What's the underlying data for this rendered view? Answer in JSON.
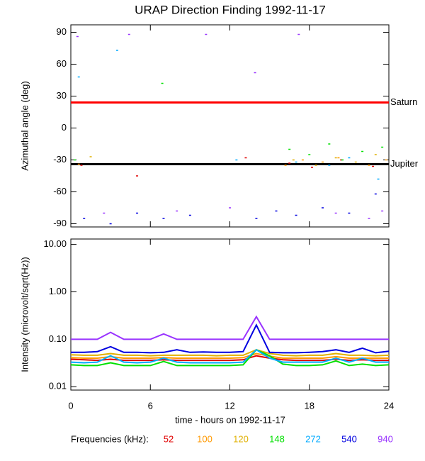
{
  "title": "URAP Direction Finding  1992-11-17",
  "xlabel": "time - hours on 1992-11-17",
  "legend_title": "Frequencies (kHz):",
  "chart_data": [
    {
      "type": "scatter",
      "ylabel": "Azimuthal angle (deg)",
      "xlim": [
        0,
        24
      ],
      "xticks": [
        0,
        6,
        12,
        18,
        24
      ],
      "ylim": [
        -93,
        97
      ],
      "yticks": [
        90,
        60,
        30,
        0,
        -30,
        -60,
        -90
      ],
      "reference_lines": [
        {
          "label": "Saturn",
          "value": 24,
          "color": "#ff0000"
        },
        {
          "label": "Jupiter",
          "value": -34,
          "color": "#000000"
        }
      ],
      "series": [
        {
          "color": "#e00000",
          "x": [
            0.8,
            5,
            13.2,
            16.5,
            18.2,
            20.4,
            22.8
          ],
          "values": [
            -35,
            -45,
            -28,
            -33,
            -37,
            -30,
            -36
          ]
        },
        {
          "color": "#ff9900",
          "x": [
            0.6,
            16.2,
            17.5,
            19,
            20.2,
            22.5,
            23.8
          ],
          "values": [
            -34,
            -35,
            -30,
            -32,
            -28,
            -35,
            -30
          ]
        },
        {
          "color": "#e0b000",
          "x": [
            1.5,
            16.8,
            18.5,
            20,
            21.5,
            23
          ],
          "values": [
            -27,
            -30,
            -35,
            -28,
            -32,
            -25
          ]
        },
        {
          "color": "#00e000",
          "x": [
            0.3,
            6.9,
            16.5,
            18,
            19.5,
            20.5,
            22,
            23.5
          ],
          "values": [
            -30,
            42,
            -20,
            -25,
            -15,
            -30,
            -22,
            -18
          ]
        },
        {
          "color": "#00aaff",
          "x": [
            0.6,
            3.5,
            12.5,
            17,
            19.5,
            21,
            23.2
          ],
          "values": [
            48,
            73,
            -30,
            -32,
            -35,
            -28,
            -48
          ]
        },
        {
          "color": "#0000e0",
          "x": [
            1,
            3,
            5,
            7,
            9,
            14,
            15.5,
            17,
            19,
            21,
            23
          ],
          "values": [
            -85,
            -90,
            -80,
            -85,
            -82,
            -85,
            -78,
            -82,
            -75,
            -80,
            -62
          ]
        },
        {
          "color": "#9933ff",
          "x": [
            0.5,
            4.4,
            10.2,
            13.9,
            17.2,
            2.5,
            8,
            12,
            20,
            22.5,
            23.5
          ],
          "values": [
            86,
            88,
            88,
            52,
            88,
            -80,
            -78,
            -75,
            -80,
            -85,
            -78
          ]
        }
      ]
    },
    {
      "type": "line",
      "ylabel": "Intensity (microvolt/sqrt(Hz))",
      "log_scale": true,
      "xlim": [
        0,
        24
      ],
      "xticks": [
        0,
        6,
        12,
        18,
        24
      ],
      "ylim": [
        0.0085,
        13
      ],
      "yticks": [
        {
          "value": 10,
          "label": "10.00"
        },
        {
          "value": 1,
          "label": "1.00"
        },
        {
          "value": 0.1,
          "label": "0.10"
        },
        {
          "value": 0.01,
          "label": "0.01"
        }
      ],
      "x": [
        0,
        1,
        2,
        3,
        4,
        5,
        6,
        7,
        8,
        9,
        10,
        11,
        12,
        13,
        14,
        15,
        16,
        17,
        18,
        19,
        20,
        21,
        22,
        23,
        24
      ],
      "series": [
        {
          "name": "52",
          "color": "#e00000",
          "values": [
            0.038,
            0.037,
            0.036,
            0.038,
            0.036,
            0.036,
            0.036,
            0.037,
            0.036,
            0.036,
            0.036,
            0.036,
            0.036,
            0.037,
            0.045,
            0.04,
            0.037,
            0.036,
            0.036,
            0.036,
            0.038,
            0.036,
            0.037,
            0.036,
            0.036
          ]
        },
        {
          "name": "100",
          "color": "#ff9900",
          "values": [
            0.041,
            0.04,
            0.04,
            0.043,
            0.04,
            0.04,
            0.04,
            0.041,
            0.04,
            0.04,
            0.04,
            0.04,
            0.04,
            0.041,
            0.05,
            0.044,
            0.04,
            0.04,
            0.04,
            0.04,
            0.043,
            0.04,
            0.04,
            0.04,
            0.04
          ]
        },
        {
          "name": "120",
          "color": "#e0b000",
          "values": [
            0.047,
            0.046,
            0.046,
            0.05,
            0.046,
            0.046,
            0.045,
            0.046,
            0.046,
            0.046,
            0.046,
            0.045,
            0.046,
            0.046,
            0.06,
            0.05,
            0.046,
            0.045,
            0.046,
            0.046,
            0.05,
            0.046,
            0.046,
            0.045,
            0.046
          ]
        },
        {
          "name": "148",
          "color": "#00e000",
          "values": [
            0.029,
            0.028,
            0.028,
            0.032,
            0.028,
            0.028,
            0.028,
            0.034,
            0.028,
            0.028,
            0.028,
            0.028,
            0.028,
            0.029,
            0.06,
            0.045,
            0.03,
            0.028,
            0.028,
            0.029,
            0.035,
            0.028,
            0.03,
            0.028,
            0.029
          ]
        },
        {
          "name": "272",
          "color": "#00aaff",
          "values": [
            0.033,
            0.032,
            0.033,
            0.045,
            0.033,
            0.032,
            0.033,
            0.04,
            0.033,
            0.032,
            0.032,
            0.032,
            0.032,
            0.033,
            0.06,
            0.04,
            0.033,
            0.033,
            0.033,
            0.033,
            0.04,
            0.033,
            0.04,
            0.033,
            0.033
          ]
        },
        {
          "name": "540",
          "color": "#0000e0",
          "values": [
            0.053,
            0.053,
            0.055,
            0.07,
            0.053,
            0.053,
            0.052,
            0.053,
            0.06,
            0.053,
            0.054,
            0.053,
            0.053,
            0.055,
            0.2,
            0.053,
            0.052,
            0.052,
            0.053,
            0.055,
            0.06,
            0.053,
            0.065,
            0.052,
            0.056
          ]
        },
        {
          "name": "940",
          "color": "#9933ff",
          "values": [
            0.1,
            0.1,
            0.1,
            0.14,
            0.1,
            0.1,
            0.1,
            0.13,
            0.1,
            0.1,
            0.1,
            0.1,
            0.1,
            0.1,
            0.3,
            0.1,
            0.1,
            0.1,
            0.1,
            0.1,
            0.1,
            0.1,
            0.1,
            0.1,
            0.1
          ]
        }
      ]
    }
  ]
}
